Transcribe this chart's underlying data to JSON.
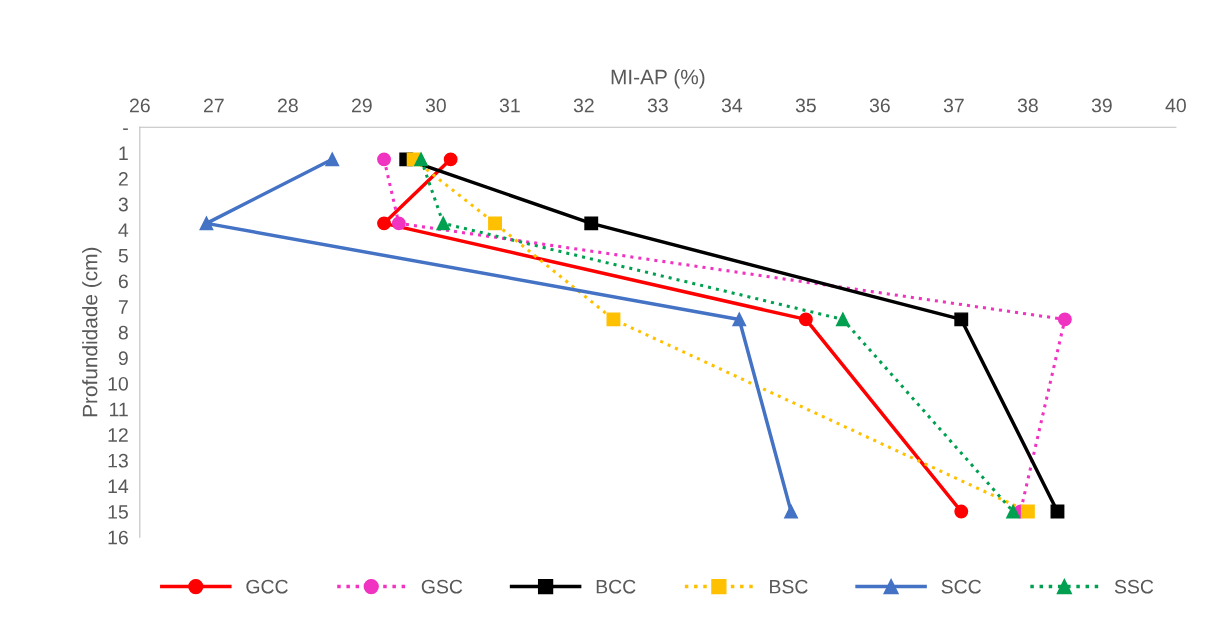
{
  "chart_data": {
    "type": "line",
    "xlabel": "MI-AP (%)",
    "ylabel": "Profundidade (cm)",
    "xlim": [
      26,
      40
    ],
    "xticks": [
      26,
      27,
      28,
      29,
      30,
      31,
      32,
      33,
      34,
      35,
      36,
      37,
      38,
      39,
      40
    ],
    "ylim": [
      16,
      0
    ],
    "yticks": [
      {
        "value": 0,
        "label": "-"
      },
      1,
      2,
      3,
      4,
      5,
      6,
      7,
      8,
      9,
      10,
      11,
      12,
      13,
      14,
      15,
      16
    ],
    "grid": false,
    "legend": "bottom",
    "series": [
      {
        "name": "GCC",
        "color": "#ff0000",
        "marker": "circle",
        "line_style": "solid",
        "x": [
          30.2,
          29.3,
          35.0,
          37.1
        ],
        "values": [
          1.25,
          3.75,
          7.5,
          15
        ]
      },
      {
        "name": "GSC",
        "color": "#f033c0",
        "marker": "circle",
        "line_style": "dotted",
        "x": [
          29.3,
          29.5,
          38.5,
          37.9
        ],
        "values": [
          1.25,
          3.75,
          7.5,
          15
        ]
      },
      {
        "name": "BCC",
        "color": "#000000",
        "marker": "square",
        "line_style": "solid",
        "x": [
          29.6,
          32.1,
          37.1,
          38.4
        ],
        "values": [
          1.25,
          3.75,
          7.5,
          15
        ]
      },
      {
        "name": "BSC",
        "color": "#ffc000",
        "marker": "square",
        "line_style": "dotted",
        "x": [
          29.7,
          30.8,
          32.4,
          38.0
        ],
        "values": [
          1.25,
          3.75,
          7.5,
          15
        ]
      },
      {
        "name": "SCC",
        "color": "#4472c4",
        "marker": "triangle",
        "line_style": "solid",
        "x": [
          28.6,
          26.9,
          34.1,
          34.8
        ],
        "values": [
          1.25,
          3.75,
          7.5,
          15
        ]
      },
      {
        "name": "SSC",
        "color": "#00a050",
        "marker": "triangle",
        "line_style": "dotted",
        "x": [
          29.8,
          30.1,
          35.5,
          37.8
        ],
        "values": [
          1.25,
          3.75,
          7.5,
          15
        ]
      }
    ]
  }
}
